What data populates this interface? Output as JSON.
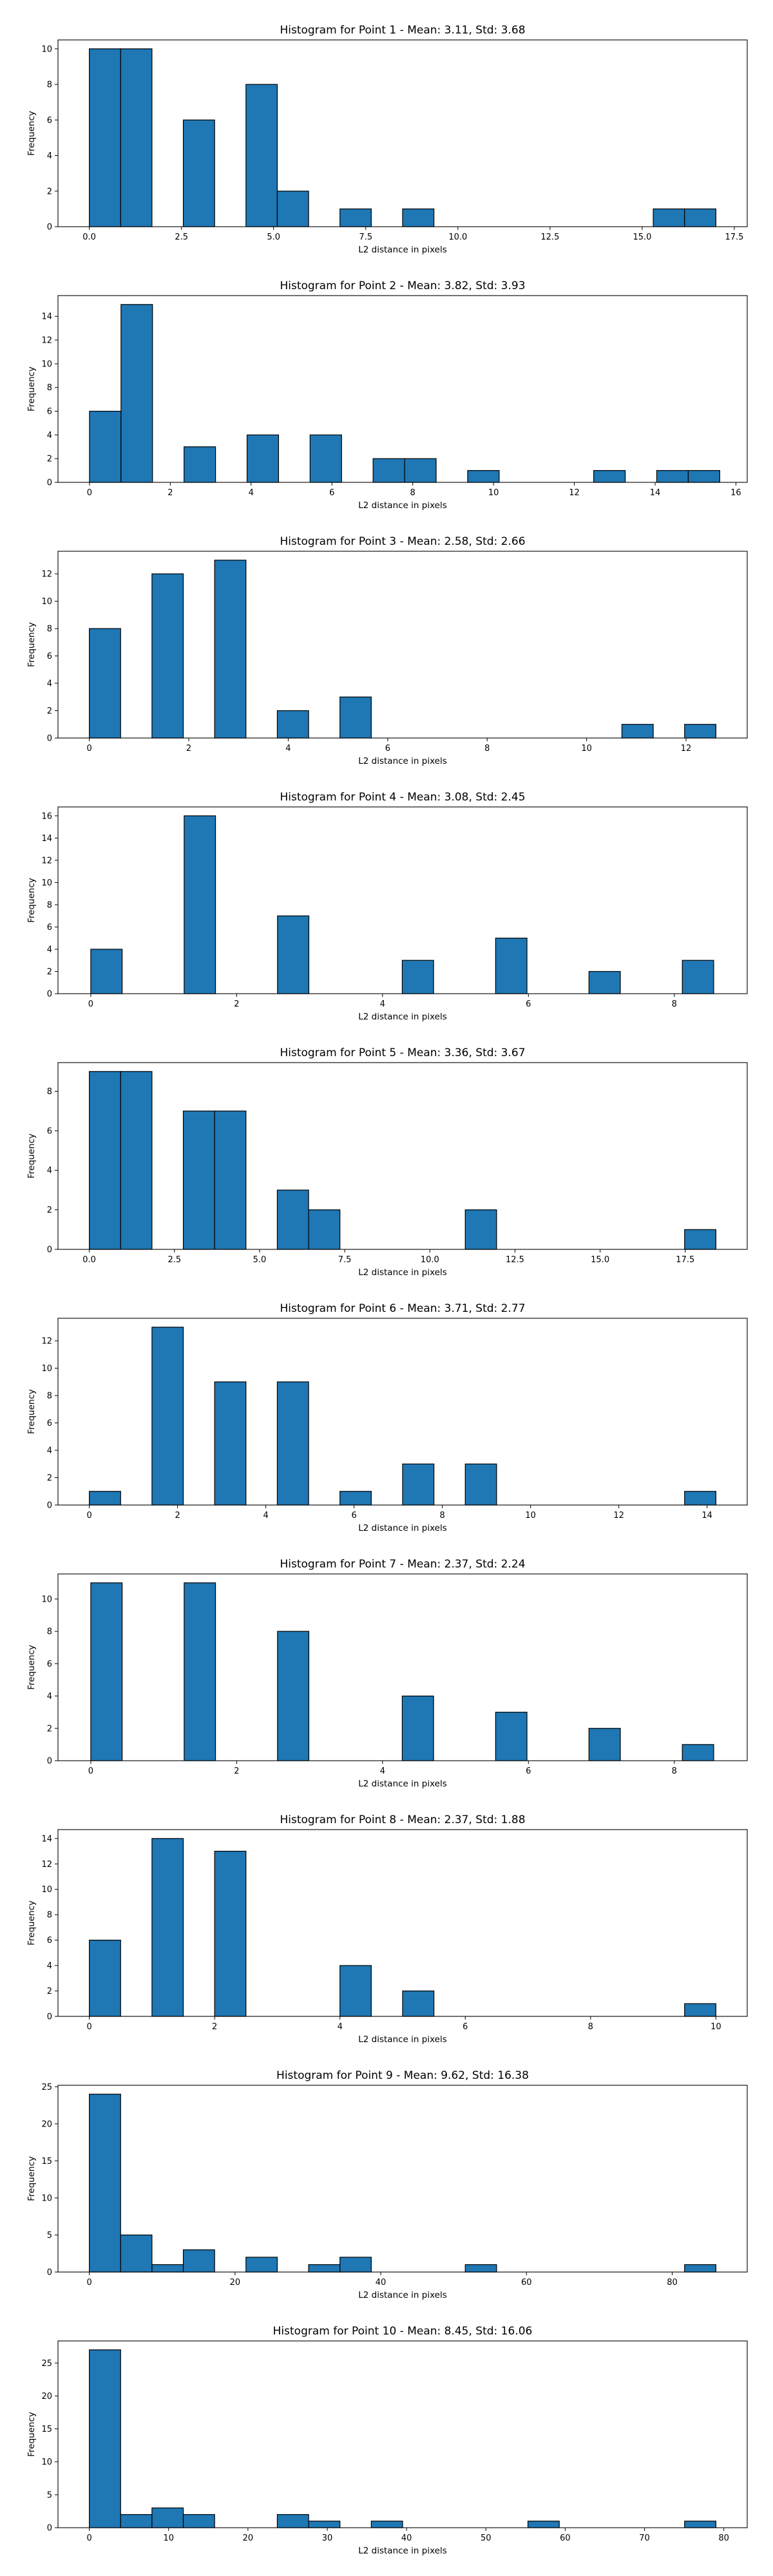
{
  "chart_data": [
    {
      "type": "bar",
      "title": "Histogram for Point 1 - Mean: 3.11, Std: 3.68",
      "xlabel": "L2 distance in pixels",
      "ylabel": "Frequency",
      "xlim": [
        -0.85,
        17.85
      ],
      "ylim": [
        0,
        10.5
      ],
      "bin_width": 0.85,
      "bins": [
        [
          0,
          10
        ],
        [
          0.85,
          10
        ],
        [
          2.55,
          6
        ],
        [
          4.25,
          8
        ],
        [
          5.1,
          2
        ],
        [
          6.8,
          1
        ],
        [
          8.5,
          1
        ],
        [
          15.3,
          1
        ],
        [
          16.15,
          1
        ]
      ],
      "xticks": [
        0.0,
        2.5,
        5.0,
        7.5,
        10.0,
        12.5,
        15.0,
        17.5
      ],
      "xtick_labels": [
        "0.0",
        "2.5",
        "5.0",
        "7.5",
        "10.0",
        "12.5",
        "15.0",
        "17.5"
      ],
      "yticks": [
        0,
        2,
        4,
        6,
        8,
        10
      ],
      "ytick_labels": [
        "0",
        "2",
        "4",
        "6",
        "8",
        "10"
      ],
      "grid": false,
      "color": "#1f77b4"
    },
    {
      "type": "bar",
      "title": "Histogram for Point 2 - Mean: 3.82, Std: 3.93",
      "xlabel": "L2 distance in pixels",
      "ylabel": "Frequency",
      "xlim": [
        -0.78,
        16.28
      ],
      "ylim": [
        0,
        15.75
      ],
      "bin_width": 0.78,
      "bins": [
        [
          0,
          6
        ],
        [
          0.78,
          15
        ],
        [
          2.34,
          3
        ],
        [
          3.9,
          4
        ],
        [
          5.46,
          4
        ],
        [
          7.02,
          2
        ],
        [
          7.8,
          2
        ],
        [
          9.36,
          1
        ],
        [
          12.48,
          1
        ],
        [
          14.04,
          1
        ],
        [
          14.82,
          1
        ]
      ],
      "xticks": [
        0,
        2,
        4,
        6,
        8,
        10,
        12,
        14,
        16
      ],
      "xtick_labels": [
        "0",
        "2",
        "4",
        "6",
        "8",
        "10",
        "12",
        "14",
        "16"
      ],
      "yticks": [
        0,
        2,
        4,
        6,
        8,
        10,
        12,
        14
      ],
      "ytick_labels": [
        "0",
        "2",
        "4",
        "6",
        "8",
        "10",
        "12",
        "14"
      ],
      "grid": false,
      "color": "#1f77b4"
    },
    {
      "type": "bar",
      "title": "Histogram for Point 3 - Mean: 2.58, Std: 2.66",
      "xlabel": "L2 distance in pixels",
      "ylabel": "Frequency",
      "xlim": [
        -0.63,
        13.23
      ],
      "ylim": [
        0,
        13.65
      ],
      "bin_width": 0.63,
      "bins": [
        [
          0,
          8
        ],
        [
          1.26,
          12
        ],
        [
          2.52,
          13
        ],
        [
          3.78,
          2
        ],
        [
          5.04,
          3
        ],
        [
          10.71,
          1
        ],
        [
          11.97,
          1
        ]
      ],
      "xticks": [
        0,
        2,
        4,
        6,
        8,
        10,
        12
      ],
      "xtick_labels": [
        "0",
        "2",
        "4",
        "6",
        "8",
        "10",
        "12"
      ],
      "yticks": [
        0,
        2,
        4,
        6,
        8,
        10,
        12
      ],
      "ytick_labels": [
        "0",
        "2",
        "4",
        "6",
        "8",
        "10",
        "12"
      ],
      "grid": false,
      "color": "#1f77b4"
    },
    {
      "type": "bar",
      "title": "Histogram for Point 4 - Mean: 3.08, Std: 2.45",
      "xlabel": "L2 distance in pixels",
      "ylabel": "Frequency",
      "xlim": [
        -0.45,
        9.0
      ],
      "ylim": [
        0,
        16.8
      ],
      "bin_width": 0.43,
      "bins": [
        [
          0,
          4
        ],
        [
          1.28,
          16
        ],
        [
          2.56,
          7
        ],
        [
          4.27,
          3
        ],
        [
          5.55,
          5
        ],
        [
          6.83,
          2
        ],
        [
          8.11,
          3
        ]
      ],
      "xticks": [
        0,
        2,
        4,
        6,
        8
      ],
      "xtick_labels": [
        "0",
        "2",
        "4",
        "6",
        "8"
      ],
      "yticks": [
        0,
        2,
        4,
        6,
        8,
        10,
        12,
        14,
        16
      ],
      "ytick_labels": [
        "0",
        "2",
        "4",
        "6",
        "8",
        "10",
        "12",
        "14",
        "16"
      ],
      "grid": false,
      "color": "#1f77b4"
    },
    {
      "type": "bar",
      "title": "Histogram for Point 5 - Mean: 3.36, Std: 3.67",
      "xlabel": "L2 distance in pixels",
      "ylabel": "Frequency",
      "xlim": [
        -0.92,
        19.32
      ],
      "ylim": [
        0,
        9.45
      ],
      "bin_width": 0.92,
      "bins": [
        [
          0,
          9
        ],
        [
          0.92,
          9
        ],
        [
          2.76,
          7
        ],
        [
          3.68,
          7
        ],
        [
          5.52,
          3
        ],
        [
          6.44,
          2
        ],
        [
          11.04,
          2
        ],
        [
          17.48,
          1
        ]
      ],
      "xticks": [
        0.0,
        2.5,
        5.0,
        7.5,
        10.0,
        12.5,
        15.0,
        17.5
      ],
      "xtick_labels": [
        "0.0",
        "2.5",
        "5.0",
        "7.5",
        "10.0",
        "12.5",
        "15.0",
        "17.5"
      ],
      "yticks": [
        0,
        2,
        4,
        6,
        8
      ],
      "ytick_labels": [
        "0",
        "2",
        "4",
        "6",
        "8"
      ],
      "grid": false,
      "color": "#1f77b4"
    },
    {
      "type": "bar",
      "title": "Histogram for Point 6 - Mean: 3.71, Std: 2.77",
      "xlabel": "L2 distance in pixels",
      "ylabel": "Frequency",
      "xlim": [
        -0.71,
        14.91
      ],
      "ylim": [
        0,
        13.65
      ],
      "bin_width": 0.71,
      "bins": [
        [
          0,
          1
        ],
        [
          1.42,
          13
        ],
        [
          2.84,
          9
        ],
        [
          4.26,
          9
        ],
        [
          5.68,
          1
        ],
        [
          7.1,
          3
        ],
        [
          8.52,
          3
        ],
        [
          13.49,
          1
        ]
      ],
      "xticks": [
        0,
        2,
        4,
        6,
        8,
        10,
        12,
        14
      ],
      "xtick_labels": [
        "0",
        "2",
        "4",
        "6",
        "8",
        "10",
        "12",
        "14"
      ],
      "yticks": [
        0,
        2,
        4,
        6,
        8,
        10,
        12
      ],
      "ytick_labels": [
        "0",
        "2",
        "4",
        "6",
        "8",
        "10",
        "12"
      ],
      "grid": false,
      "color": "#1f77b4"
    },
    {
      "type": "bar",
      "title": "Histogram for Point 7 - Mean: 2.37, Std: 2.24",
      "xlabel": "L2 distance in pixels",
      "ylabel": "Frequency",
      "xlim": [
        -0.45,
        9.0
      ],
      "ylim": [
        0,
        11.55
      ],
      "bin_width": 0.43,
      "bins": [
        [
          0,
          11
        ],
        [
          1.28,
          11
        ],
        [
          2.56,
          8
        ],
        [
          4.27,
          4
        ],
        [
          5.55,
          3
        ],
        [
          6.83,
          2
        ],
        [
          8.11,
          1
        ]
      ],
      "xticks": [
        0,
        2,
        4,
        6,
        8
      ],
      "xtick_labels": [
        "0",
        "2",
        "4",
        "6",
        "8"
      ],
      "yticks": [
        0,
        2,
        4,
        6,
        8,
        10
      ],
      "ytick_labels": [
        "0",
        "2",
        "4",
        "6",
        "8",
        "10"
      ],
      "grid": false,
      "color": "#1f77b4"
    },
    {
      "type": "bar",
      "title": "Histogram for Point 8 - Mean: 2.37, Std: 1.88",
      "xlabel": "L2 distance in pixels",
      "ylabel": "Frequency",
      "xlim": [
        -0.5,
        10.5
      ],
      "ylim": [
        0,
        14.7
      ],
      "bin_width": 0.5,
      "bins": [
        [
          0,
          6
        ],
        [
          1.0,
          14
        ],
        [
          2.0,
          13
        ],
        [
          4.0,
          4
        ],
        [
          5.0,
          2
        ],
        [
          9.5,
          1
        ]
      ],
      "xticks": [
        0,
        2,
        4,
        6,
        8,
        10
      ],
      "xtick_labels": [
        "0",
        "2",
        "4",
        "6",
        "8",
        "10"
      ],
      "yticks": [
        0,
        2,
        4,
        6,
        8,
        10,
        12,
        14
      ],
      "ytick_labels": [
        "0",
        "2",
        "4",
        "6",
        "8",
        "10",
        "12",
        "14"
      ],
      "grid": false,
      "color": "#1f77b4"
    },
    {
      "type": "bar",
      "title": "Histogram for Point 9 - Mean: 9.62, Std: 16.38",
      "xlabel": "L2 distance in pixels",
      "ylabel": "Frequency",
      "xlim": [
        -4.3,
        90.3
      ],
      "ylim": [
        0,
        25.2
      ],
      "bin_width": 4.3,
      "bins": [
        [
          0,
          24
        ],
        [
          4.3,
          5
        ],
        [
          8.6,
          1
        ],
        [
          12.9,
          3
        ],
        [
          21.5,
          2
        ],
        [
          30.1,
          1
        ],
        [
          34.4,
          2
        ],
        [
          51.6,
          1
        ],
        [
          81.7,
          1
        ]
      ],
      "xticks": [
        0,
        20,
        40,
        60,
        80
      ],
      "xtick_labels": [
        "0",
        "20",
        "40",
        "60",
        "80"
      ],
      "yticks": [
        0,
        5,
        10,
        15,
        20,
        25
      ],
      "ytick_labels": [
        "0",
        "5",
        "10",
        "15",
        "20",
        "25"
      ],
      "grid": false,
      "color": "#1f77b4"
    },
    {
      "type": "bar",
      "title": "Histogram for Point 10 - Mean: 8.45, Std: 16.06",
      "xlabel": "L2 distance in pixels",
      "ylabel": "Frequency",
      "xlim": [
        -3.95,
        82.95
      ],
      "ylim": [
        0,
        28.35
      ],
      "bin_width": 3.95,
      "bins": [
        [
          0,
          27
        ],
        [
          3.95,
          2
        ],
        [
          7.9,
          3
        ],
        [
          11.85,
          2
        ],
        [
          23.7,
          2
        ],
        [
          27.65,
          1
        ],
        [
          35.55,
          1
        ],
        [
          55.3,
          1
        ],
        [
          75.05,
          1
        ]
      ],
      "xticks": [
        0,
        10,
        20,
        30,
        40,
        50,
        60,
        70,
        80
      ],
      "xtick_labels": [
        "0",
        "10",
        "20",
        "30",
        "40",
        "50",
        "60",
        "70",
        "80"
      ],
      "yticks": [
        0,
        5,
        10,
        15,
        20,
        25
      ],
      "ytick_labels": [
        "0",
        "5",
        "10",
        "15",
        "20",
        "25"
      ],
      "grid": false,
      "color": "#1f77b4"
    }
  ]
}
